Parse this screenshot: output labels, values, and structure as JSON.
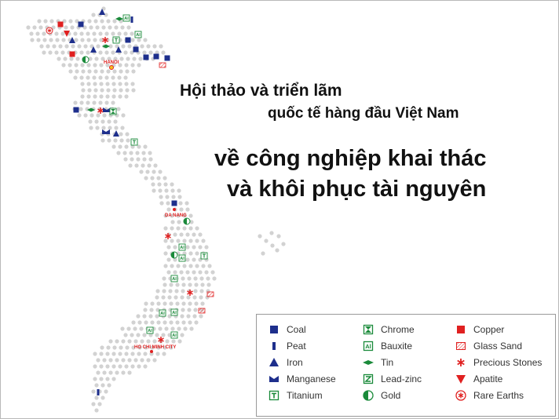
{
  "headline": {
    "line1": "Hội thảo và triển lãm",
    "line2": "quốc tế hàng đầu Việt Nam",
    "line3": "về công nghiệp khai thác",
    "line4": "và khôi phục tài nguyên"
  },
  "cities": {
    "hanoi": "HANOI",
    "da_nang": "DA NANG",
    "hcmc": "HO CHI MINH CITY"
  },
  "legend": {
    "items": [
      {
        "label": "Coal",
        "icon": "coal-icon"
      },
      {
        "label": "Peat",
        "icon": "peat-icon"
      },
      {
        "label": "Iron",
        "icon": "iron-icon"
      },
      {
        "label": "Manganese",
        "icon": "manganese-icon"
      },
      {
        "label": "Titanium",
        "icon": "titanium-icon"
      },
      {
        "label": "Chrome",
        "icon": "chrome-icon"
      },
      {
        "label": "Bauxite",
        "icon": "bauxite-icon"
      },
      {
        "label": "Tin",
        "icon": "tin-icon"
      },
      {
        "label": "Lead-zinc",
        "icon": "lead-zinc-icon"
      },
      {
        "label": "Gold",
        "icon": "gold-icon"
      },
      {
        "label": "Copper",
        "icon": "copper-icon"
      },
      {
        "label": "Glass Sand",
        "icon": "glass-sand-icon"
      },
      {
        "label": "Precious Stones",
        "icon": "precious-stones-icon"
      },
      {
        "label": "Apatite",
        "icon": "apatite-icon"
      },
      {
        "label": "Rare Earths",
        "icon": "rare-earths-icon"
      }
    ]
  },
  "colors": {
    "navy": "#1e2f8c",
    "green": "#1a8a3a",
    "red": "#e02020",
    "dot": "#d2d2d2"
  }
}
